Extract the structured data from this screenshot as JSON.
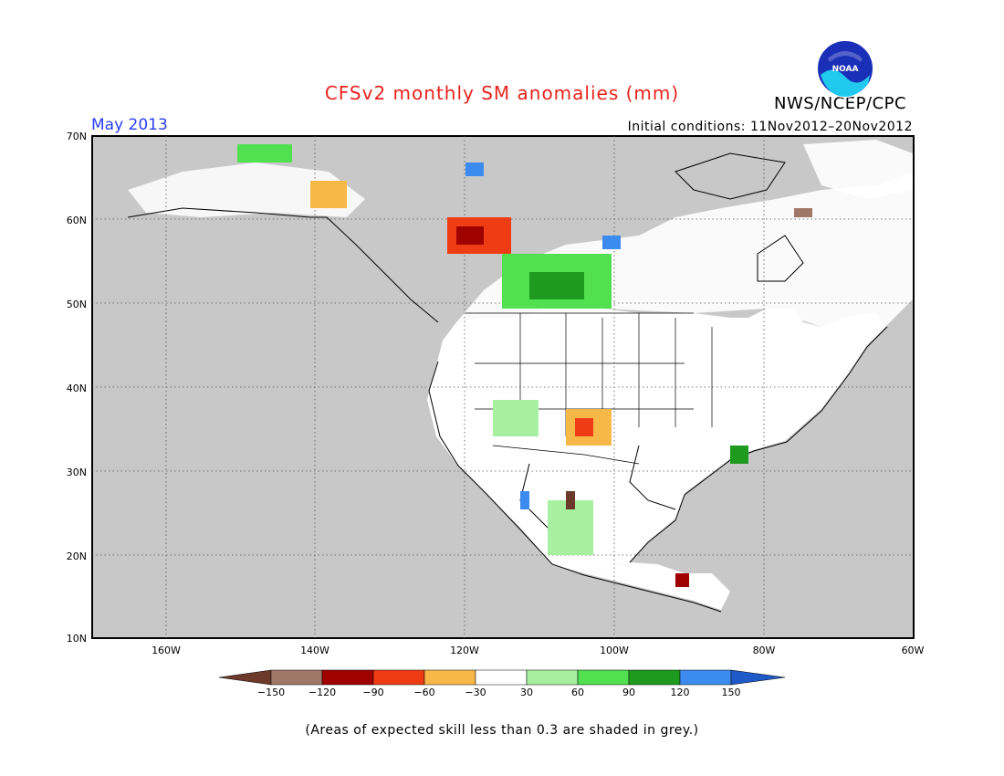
{
  "header": {
    "title": "CFSv2 monthly SM anomalies (mm)",
    "month": "May 2013",
    "initial_conditions": "Initial conditions: 11Nov2012–20Nov2012",
    "agency": "NWS/NCEP/CPC",
    "logo_text": "NOAA"
  },
  "map": {
    "lat_labels": [
      "70N",
      "60N",
      "50N",
      "40N",
      "30N",
      "20N",
      "10N"
    ],
    "lon_labels": [
      "160W",
      "140W",
      "120W",
      "100W",
      "80W",
      "60W"
    ],
    "colors": {
      "background_low_skill": "#c8c8c8",
      "land_neutral": "#ffffff",
      "ocean_outline": "#000000"
    }
  },
  "colorbar": {
    "labels": [
      "−150",
      "−120",
      "−90",
      "−60",
      "−30",
      "30",
      "60",
      "90",
      "120",
      "150"
    ],
    "colors": [
      "#6b3a2a",
      "#a0786a",
      "#a00000",
      "#f03c14",
      "#f8b848",
      "#ffffff",
      "#a6f0a0",
      "#50e050",
      "#1e9b1e",
      "#3c8cf0",
      "#1e5ac8"
    ]
  },
  "footer": {
    "note": "(Areas of expected skill less than 0.3 are shaded in grey.)"
  }
}
